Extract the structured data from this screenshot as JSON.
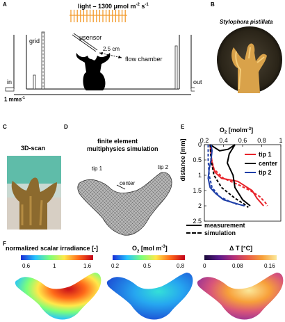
{
  "panels": {
    "a": "A",
    "b": "B",
    "c": "C",
    "d": "D",
    "e": "E",
    "f": "F"
  },
  "panel_a": {
    "light": "light – 1300 μmol m",
    "light_sup1": "-2",
    "light_mid": " s",
    "light_sup2": "-1",
    "grid": "grid",
    "usensor": "μsensor",
    "distance": "2.5 cm",
    "flow_chamber": "flow chamber",
    "in": "in",
    "out": "out",
    "flow_rate": "1 mms",
    "flow_rate_sup": "-1"
  },
  "panel_b": {
    "title": "Stylophora pistillata"
  },
  "panel_c": {
    "title": "3D-scan"
  },
  "panel_d": {
    "title_line1": "finite element",
    "title_line2": "multiphysics simulation",
    "tip1": "tip 1",
    "tip2": "tip 2",
    "center": "center"
  },
  "chart_data": {
    "type": "line",
    "title": "",
    "xlabel": "O2 [mol m-3]",
    "xlabel_main": "O",
    "xlabel_sub": "2",
    "xlabel_unit": " [molm",
    "xlabel_sup": "-3",
    "xlabel_close": "]",
    "ylabel": "distance [mm]",
    "xlim": [
      0.2,
      1.0
    ],
    "ylim": [
      2.5,
      0
    ],
    "x_ticks": [
      "0.2",
      "0.4",
      "0.6",
      "0.8",
      "1"
    ],
    "x_tick_values": [
      0.2,
      0.4,
      0.6,
      0.8,
      1.0
    ],
    "y_ticks": [
      "0",
      "0.5",
      "1",
      "1.5",
      "2",
      "2.5"
    ],
    "y_tick_values": [
      0,
      0.5,
      1,
      1.5,
      2,
      2.5
    ],
    "series": [
      {
        "name": "tip 1",
        "color": "#e8232a",
        "style": "measurement",
        "points": [
          [
            0.26,
            0.0
          ],
          [
            0.27,
            0.3
          ],
          [
            0.28,
            0.6
          ],
          [
            0.31,
            0.9
          ],
          [
            0.38,
            1.1
          ],
          [
            0.55,
            1.2
          ],
          [
            0.6,
            1.3
          ],
          [
            0.7,
            1.5
          ],
          [
            0.75,
            1.75
          ],
          [
            0.82,
            2.0
          ]
        ]
      },
      {
        "name": "tip 1",
        "color": "#e8232a",
        "style": "simulation",
        "points": [
          [
            0.26,
            0.0
          ],
          [
            0.27,
            0.4
          ],
          [
            0.3,
            0.8
          ],
          [
            0.4,
            1.1
          ],
          [
            0.55,
            1.3
          ],
          [
            0.68,
            1.5
          ],
          [
            0.78,
            1.7
          ],
          [
            0.84,
            1.9
          ],
          [
            0.86,
            2.0
          ]
        ]
      },
      {
        "name": "center",
        "color": "#000000",
        "style": "measurement",
        "points": [
          [
            0.26,
            0.0
          ],
          [
            0.36,
            0.2
          ],
          [
            0.45,
            0.15
          ],
          [
            0.52,
            0.0
          ],
          [
            0.46,
            0.3
          ],
          [
            0.44,
            0.6
          ],
          [
            0.5,
            1.0
          ],
          [
            0.52,
            1.4
          ],
          [
            0.6,
            1.8
          ],
          [
            0.68,
            2.0
          ]
        ]
      },
      {
        "name": "center",
        "color": "#000000",
        "style": "simulation",
        "points": [
          [
            0.26,
            0.0
          ],
          [
            0.27,
            0.5
          ],
          [
            0.3,
            1.0
          ],
          [
            0.38,
            1.4
          ],
          [
            0.52,
            1.75
          ],
          [
            0.62,
            1.95
          ],
          [
            0.66,
            2.05
          ]
        ]
      },
      {
        "name": "tip 2",
        "color": "#1f3fa8",
        "style": "measurement",
        "points": [
          [
            0.27,
            0.0
          ],
          [
            0.28,
            0.2
          ],
          [
            0.27,
            0.5
          ],
          [
            0.25,
            0.8
          ],
          [
            0.24,
            1.1
          ],
          [
            0.26,
            1.4
          ],
          [
            0.32,
            1.6
          ],
          [
            0.4,
            1.8
          ],
          [
            0.56,
            1.95
          ],
          [
            0.62,
            2.0
          ]
        ]
      },
      {
        "name": "tip 2",
        "color": "#1f3fa8",
        "style": "simulation",
        "points": [
          [
            0.24,
            0.0
          ],
          [
            0.24,
            0.5
          ],
          [
            0.25,
            1.0
          ],
          [
            0.28,
            1.4
          ],
          [
            0.36,
            1.7
          ],
          [
            0.46,
            1.85
          ],
          [
            0.54,
            1.95
          ]
        ]
      }
    ],
    "legend": [
      "tip 1",
      "center",
      "tip 2"
    ],
    "legend_colors": [
      "#e8232a",
      "#000000",
      "#1f3fa8"
    ],
    "legend_placement": "top-right",
    "style_legend": [
      "measurement",
      "simulation"
    ]
  },
  "panel_f": {
    "irradiance": {
      "title": "normalized scalar irradiance [-]",
      "ticks": [
        "0.6",
        "1",
        "1.6"
      ]
    },
    "oxygen": {
      "title_main": "O",
      "title_sub": "2",
      "title_unit": " [mol m",
      "title_sup": "-3",
      "title_close": "]",
      "ticks": [
        "0.2",
        "0.5",
        "0.8"
      ]
    },
    "temperature": {
      "title": "Δ T [°C]",
      "ticks": [
        "0",
        "0.08",
        "0.16"
      ]
    }
  }
}
